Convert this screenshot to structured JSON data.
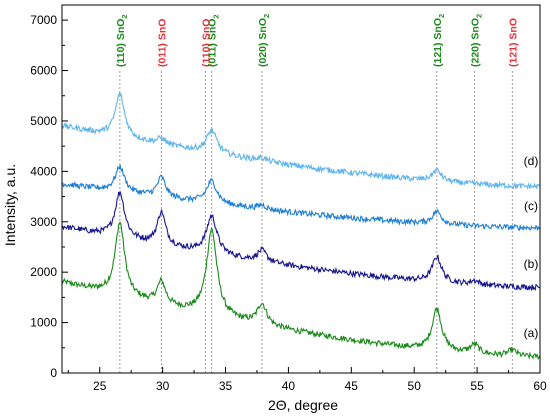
{
  "chart_data": {
    "type": "line",
    "title": "",
    "xlabel": "2Θ, degree",
    "ylabel": "Intensity, a.u.",
    "xlim": [
      22,
      60
    ],
    "ylim": [
      0,
      7300
    ],
    "xticks": [
      25,
      30,
      35,
      40,
      45,
      50,
      55,
      60
    ],
    "yticks": [
      0,
      1000,
      2000,
      3000,
      4000,
      5000,
      6000,
      7000
    ],
    "grid": false,
    "legend": "none",
    "series": [
      {
        "name": "(a)",
        "color": "#1a8a1a",
        "baseline_start": 1800,
        "baseline_end": 320,
        "peaks": [
          {
            "x": 26.6,
            "height": 1450,
            "width": 0.45
          },
          {
            "x": 29.9,
            "height": 450,
            "width": 0.4
          },
          {
            "x": 33.9,
            "height": 1700,
            "width": 0.5
          },
          {
            "x": 37.9,
            "height": 420,
            "width": 0.45
          },
          {
            "x": 51.8,
            "height": 830,
            "width": 0.45
          },
          {
            "x": 54.8,
            "height": 180,
            "width": 0.4
          },
          {
            "x": 57.8,
            "height": 120,
            "width": 0.4
          }
        ]
      },
      {
        "name": "(b)",
        "color": "#17178f",
        "baseline_start": 2900,
        "baseline_end": 1700,
        "peaks": [
          {
            "x": 26.6,
            "height": 900,
            "width": 0.45
          },
          {
            "x": 29.9,
            "height": 650,
            "width": 0.4
          },
          {
            "x": 33.9,
            "height": 750,
            "width": 0.5
          },
          {
            "x": 37.9,
            "height": 220,
            "width": 0.45
          },
          {
            "x": 51.8,
            "height": 500,
            "width": 0.45
          },
          {
            "x": 54.8,
            "height": 80,
            "width": 0.4
          }
        ]
      },
      {
        "name": "(c)",
        "color": "#1e7fd6",
        "baseline_start": 3750,
        "baseline_end": 2880,
        "peaks": [
          {
            "x": 26.6,
            "height": 500,
            "width": 0.45
          },
          {
            "x": 29.9,
            "height": 400,
            "width": 0.4
          },
          {
            "x": 33.9,
            "height": 450,
            "width": 0.5
          },
          {
            "x": 37.9,
            "height": 80,
            "width": 0.45
          },
          {
            "x": 51.8,
            "height": 250,
            "width": 0.45
          }
        ]
      },
      {
        "name": "(d)",
        "color": "#5fb4ec",
        "baseline_start": 4900,
        "baseline_end": 3700,
        "peaks": [
          {
            "x": 26.6,
            "height": 850,
            "width": 0.45
          },
          {
            "x": 29.9,
            "height": 120,
            "width": 0.4
          },
          {
            "x": 33.9,
            "height": 450,
            "width": 0.5
          },
          {
            "x": 37.9,
            "height": 60,
            "width": 0.45
          },
          {
            "x": 51.8,
            "height": 220,
            "width": 0.45
          }
        ]
      }
    ],
    "reference_lines": [
      {
        "x": 26.6,
        "label": "(110) SnO",
        "sub": "2",
        "color": "#1a8a1a"
      },
      {
        "x": 29.9,
        "label": "(011) SnO",
        "sub": "",
        "color": "#e8303a"
      },
      {
        "x": 33.4,
        "label": "(110) SnO",
        "sub": "",
        "color": "#e8303a"
      },
      {
        "x": 33.9,
        "label": "(011) SnO",
        "sub": "2",
        "color": "#1a8a1a"
      },
      {
        "x": 37.9,
        "label": "(020) SnO",
        "sub": "2",
        "color": "#1a8a1a"
      },
      {
        "x": 51.8,
        "label": "(121) SnO",
        "sub": "2",
        "color": "#1a8a1a"
      },
      {
        "x": 54.8,
        "label": "(220) SnO",
        "sub": "2",
        "color": "#1a8a1a"
      },
      {
        "x": 57.8,
        "label": "(121) SnO",
        "sub": "",
        "color": "#e8303a"
      }
    ],
    "curve_labels": [
      "(d)",
      "(c)",
      "(b)",
      "(a)"
    ]
  }
}
